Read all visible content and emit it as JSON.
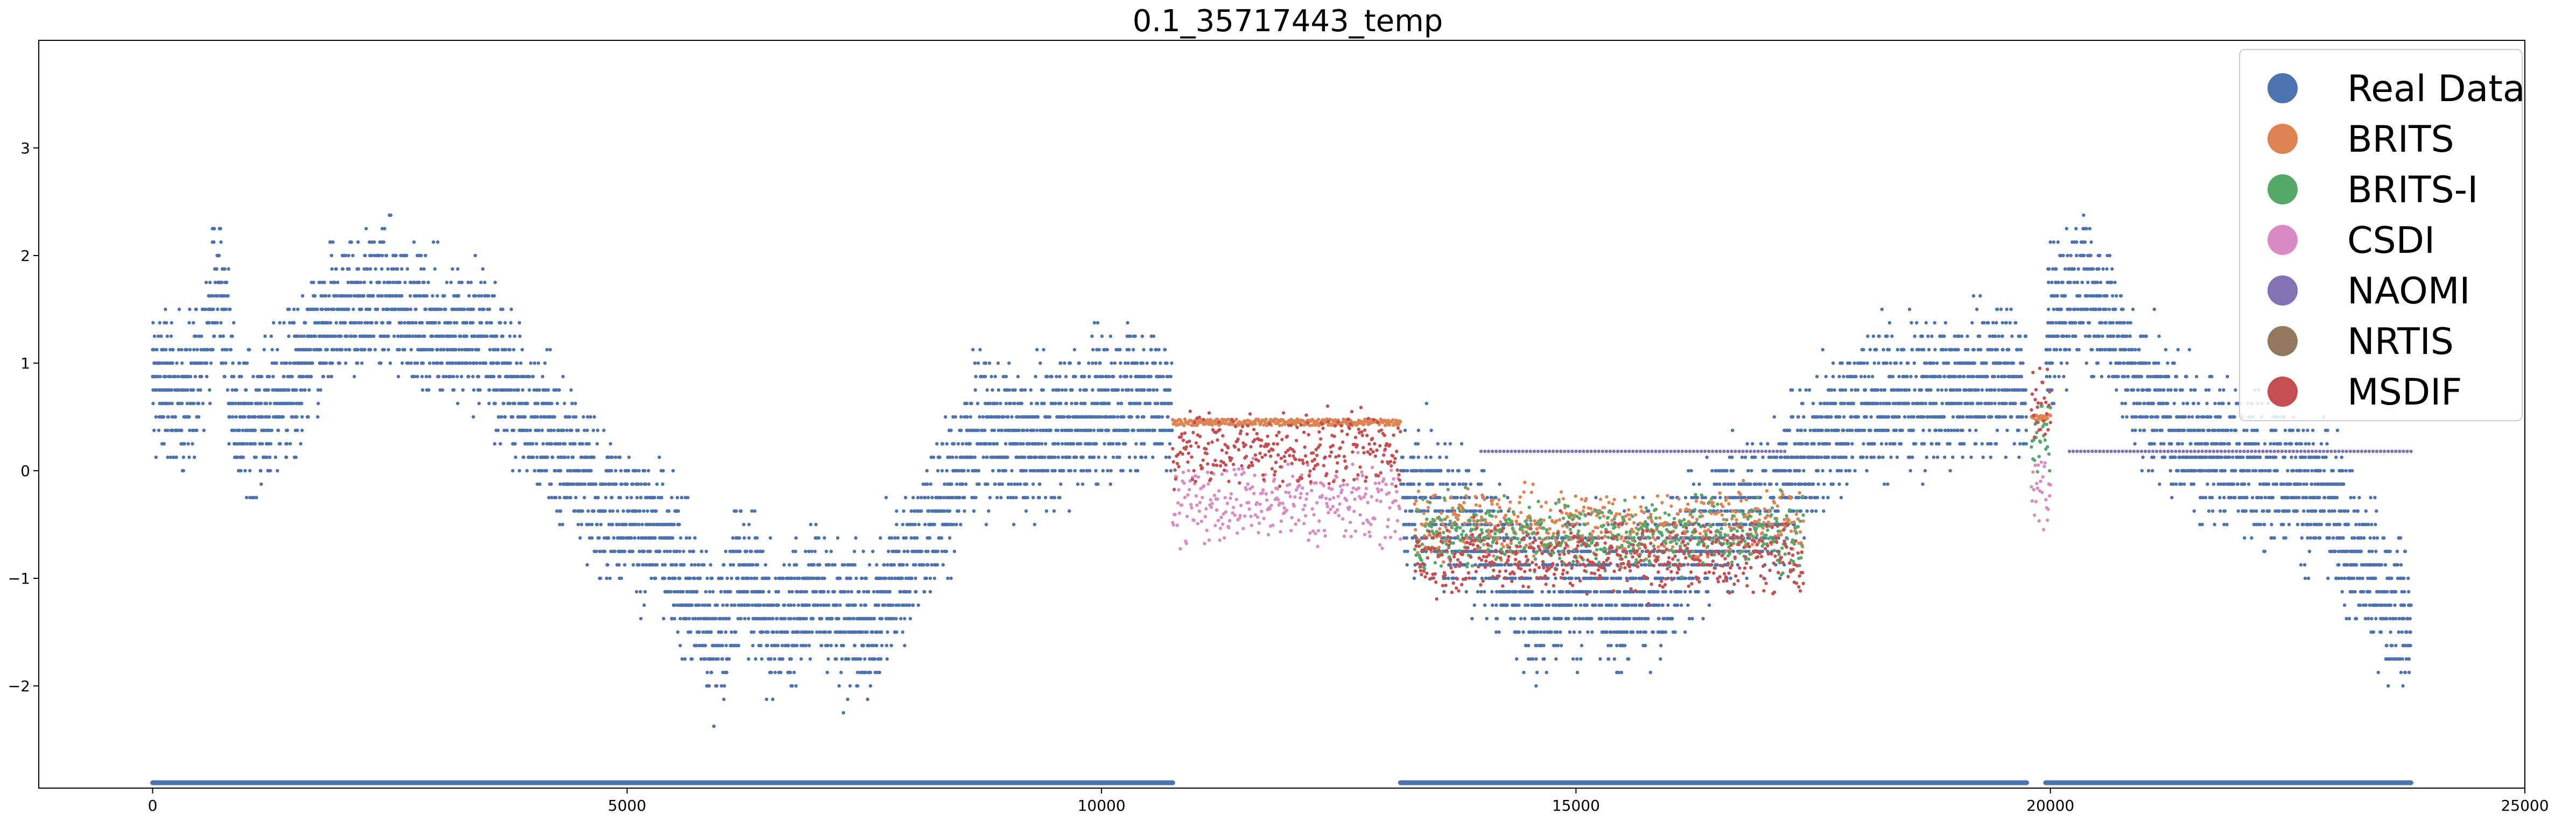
{
  "chart_data": {
    "type": "scatter",
    "title": "0.1_35717443_temp",
    "xlabel": "",
    "ylabel": "",
    "xlim": [
      -1200,
      25000
    ],
    "ylim": [
      -2.95,
      4.0
    ],
    "xticks": [
      0,
      5000,
      10000,
      15000,
      20000,
      25000
    ],
    "yticks": [
      -2,
      -1,
      0,
      1,
      2,
      3
    ],
    "grid": false,
    "legend_position": "top-right",
    "series": [
      {
        "name": "Real Data",
        "color": "#4c72b0",
        "anchors": [
          [
            0,
            0.9
          ],
          [
            400,
            0.6
          ],
          [
            700,
            1.8
          ],
          [
            900,
            0.4
          ],
          [
            1200,
            0.5
          ],
          [
            1600,
            1.0
          ],
          [
            2000,
            1.5
          ],
          [
            2500,
            1.6
          ],
          [
            3000,
            1.3
          ],
          [
            3500,
            1.2
          ],
          [
            3900,
            0.6
          ],
          [
            4200,
            0.3
          ],
          [
            4800,
            -0.3
          ],
          [
            5200,
            -0.5
          ],
          [
            5600,
            -1.0
          ],
          [
            5900,
            -1.6
          ],
          [
            6200,
            -0.9
          ],
          [
            6600,
            -1.5
          ],
          [
            7000,
            -1.1
          ],
          [
            7500,
            -1.5
          ],
          [
            8000,
            -0.8
          ],
          [
            8400,
            -0.2
          ],
          [
            8700,
            0.4
          ],
          [
            9200,
            0.2
          ],
          [
            9600,
            0.4
          ],
          [
            10000,
            0.6
          ],
          [
            10400,
            0.7
          ],
          [
            10700,
            0.6
          ],
          [
            13100,
            -0.2
          ],
          [
            13500,
            -0.3
          ],
          [
            14000,
            -0.6
          ],
          [
            14500,
            -1.2
          ],
          [
            15000,
            -1.0
          ],
          [
            15500,
            -1.2
          ],
          [
            16000,
            -0.9
          ],
          [
            16500,
            -0.5
          ],
          [
            17000,
            -0.3
          ],
          [
            17500,
            0.2
          ],
          [
            18000,
            0.6
          ],
          [
            18500,
            0.7
          ],
          [
            19000,
            0.7
          ],
          [
            19500,
            0.9
          ],
          [
            19700,
            0.8
          ],
          [
            20000,
            1.3
          ],
          [
            20300,
            1.8
          ],
          [
            20600,
            1.4
          ],
          [
            21000,
            0.7
          ],
          [
            21500,
            0.3
          ],
          [
            22000,
            0.1
          ],
          [
            22500,
            0.0
          ],
          [
            22900,
            -0.3
          ],
          [
            23300,
            -0.9
          ],
          [
            23700,
            -1.3
          ],
          [
            23800,
            -1.5
          ]
        ],
        "gaps": [
          [
            10750,
            13150
          ],
          [
            19750,
            19950
          ]
        ]
      },
      {
        "name": "BRITS",
        "color": "#dd8452",
        "segments": [
          {
            "x": [
              10750,
              13150
            ],
            "center": 0.45
          },
          {
            "x": [
              13300,
              17400
            ],
            "center": -0.5
          },
          {
            "x": [
              19800,
              20000
            ],
            "center": 0.5
          }
        ]
      },
      {
        "name": "BRITS-I",
        "color": "#55a868",
        "segments": [
          {
            "x": [
              13300,
              17400
            ],
            "center": -0.6
          },
          {
            "x": [
              19800,
              20000
            ],
            "center": 0.3
          }
        ]
      },
      {
        "name": "CSDI",
        "color": "#da8bc3",
        "segments": [
          {
            "x": [
              10750,
              13150
            ],
            "center": -0.3
          },
          {
            "x": [
              19800,
              20000
            ],
            "center": -0.2
          }
        ]
      },
      {
        "name": "NAOMI",
        "color": "#8172b3",
        "segments": [
          {
            "x": [
              14000,
              17200
            ],
            "center": 0.18
          },
          {
            "x": [
              20200,
              23800
            ],
            "center": 0.18
          }
        ]
      },
      {
        "name": "NRTIS",
        "color": "#937860",
        "segments": []
      },
      {
        "name": "MSDIF",
        "color": "#c44e52",
        "segments": [
          {
            "x": [
              10750,
              13150
            ],
            "center": 0.2
          },
          {
            "x": [
              13300,
              17400
            ],
            "center": -0.8
          },
          {
            "x": [
              19800,
              20000
            ],
            "center": 0.6
          }
        ]
      }
    ],
    "mask_band": {
      "color": "#4c72b0",
      "y": -2.9,
      "segments": [
        [
          0,
          10750
        ],
        [
          13150,
          19750
        ],
        [
          19950,
          23800
        ]
      ]
    }
  }
}
